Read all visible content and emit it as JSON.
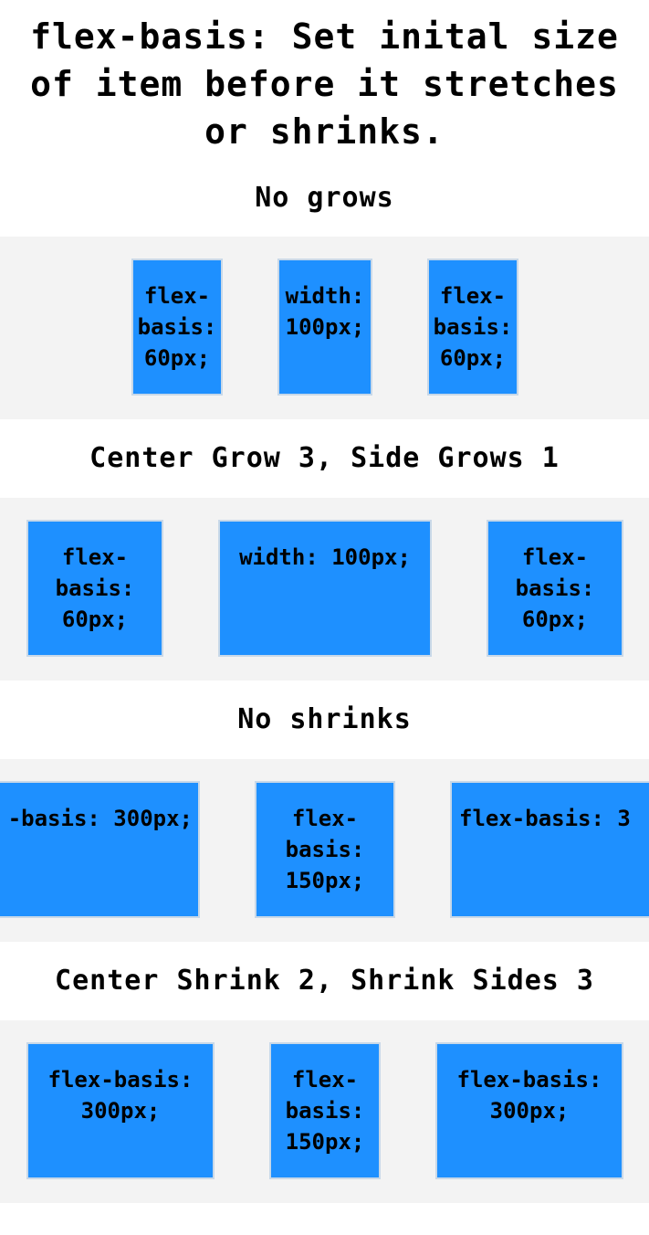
{
  "page": {
    "title_line1": "flex-basis: Set inital size",
    "title_line2": "of item before it stretches",
    "title_line3": "or shrinks."
  },
  "sections": [
    {
      "heading": "No grows",
      "boxes": [
        {
          "lines": [
            "flex-",
            "basis:",
            "60px;"
          ]
        },
        {
          "lines": [
            "width:",
            "100px;"
          ]
        },
        {
          "lines": [
            "flex-",
            "basis:",
            "60px;"
          ]
        }
      ]
    },
    {
      "heading": "Center Grow 3, Side Grows 1",
      "boxes": [
        {
          "lines": [
            "flex-",
            "basis:",
            "60px;"
          ]
        },
        {
          "lines": [
            "width: 100px;"
          ]
        },
        {
          "lines": [
            "flex-",
            "basis:",
            "60px;"
          ]
        }
      ]
    },
    {
      "heading": "No shrinks",
      "boxes": [
        {
          "lines": [
            "-basis: 300px;"
          ]
        },
        {
          "lines": [
            "flex-",
            "basis:",
            "150px;"
          ]
        },
        {
          "lines": [
            "flex-basis: 3"
          ]
        }
      ]
    },
    {
      "heading": "Center Shrink 2, Shrink Sides 3",
      "boxes": [
        {
          "lines": [
            "flex-basis:",
            "300px;"
          ]
        },
        {
          "lines": [
            "flex-",
            "basis:",
            "150px;"
          ]
        },
        {
          "lines": [
            "flex-basis:",
            "300px;"
          ]
        }
      ]
    }
  ],
  "colors": {
    "box_fill": "#1e90ff",
    "strip_background": "#f3f3f3",
    "page_background": "#ffffff"
  }
}
